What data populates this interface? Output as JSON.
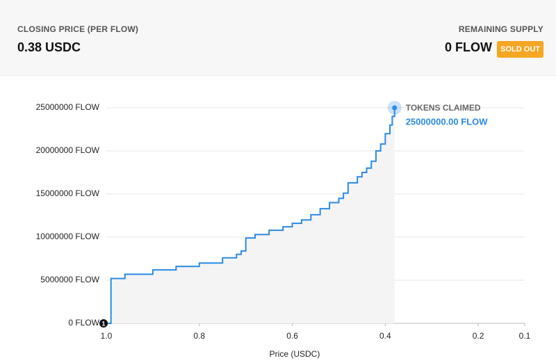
{
  "header": {
    "closing_price_label": "CLOSING PRICE (PER FLOW)",
    "closing_price": "0.38 USDC",
    "remaining_supply_label": "REMAINING SUPPLY",
    "remaining_supply": "0 FLOW",
    "badge": "SOLD OUT"
  },
  "chart_data": {
    "type": "step",
    "x_label": "Price (USDC)",
    "x": [
      1.0,
      0.99,
      0.96,
      0.9,
      0.85,
      0.8,
      0.75,
      0.72,
      0.71,
      0.7,
      0.68,
      0.65,
      0.62,
      0.6,
      0.58,
      0.56,
      0.54,
      0.52,
      0.5,
      0.49,
      0.48,
      0.46,
      0.45,
      0.44,
      0.43,
      0.42,
      0.41,
      0.4,
      0.39,
      0.385,
      0.38
    ],
    "series": [
      {
        "color": "#2b8ae6",
        "values": [
          0,
          5200000,
          5700000,
          6200000,
          6600000,
          7000000,
          7600000,
          8000000,
          8400000,
          9900000,
          10300000,
          10800000,
          11200000,
          11600000,
          12000000,
          12600000,
          13300000,
          14000000,
          14500000,
          15100000,
          16300000,
          17000000,
          17500000,
          18000000,
          18800000,
          20000000,
          20800000,
          22000000,
          23000000,
          24000000,
          25000000
        ]
      }
    ],
    "xlim": [
      1.0,
      0.1
    ],
    "xticks": [
      {
        "value": 1,
        "label": "1.0"
      },
      0.8,
      0.6,
      0.4,
      0.2,
      0.1
    ],
    "ylim": [
      0,
      25000000
    ],
    "yticks": [
      {
        "value": 0,
        "label": "0 FLOW"
      },
      {
        "value": 5000000,
        "label": "5000000 FLOW"
      },
      {
        "value": 10000000,
        "label": "10000000 FLOW"
      },
      {
        "value": 15000000,
        "label": "15000000 FLOW"
      },
      {
        "value": 20000000,
        "label": "20000000 FLOW"
      },
      {
        "value": 25000000,
        "label": "25000000 FLOW"
      }
    ],
    "grid": true,
    "start_marker": "1",
    "annotation": {
      "title": "TOKENS CLAIMED",
      "text": "25000000.00 FLOW"
    }
  }
}
